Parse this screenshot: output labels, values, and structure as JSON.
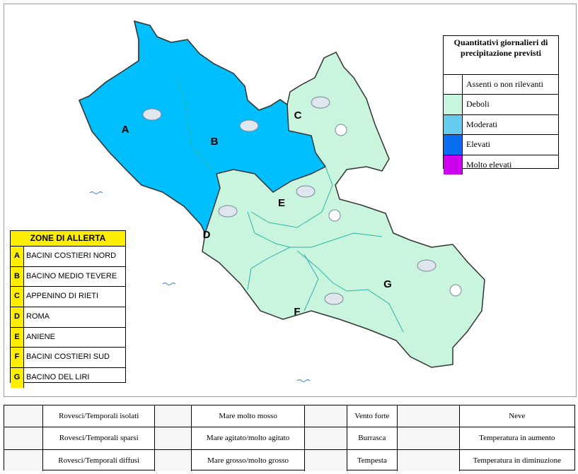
{
  "map": {
    "zone_labels": [
      "A",
      "B",
      "C",
      "D",
      "E",
      "F",
      "G"
    ]
  },
  "precip_legend": {
    "title": "Quantitativi giornalieri di precipitazione previsti",
    "items": [
      {
        "label": "Assenti o non rilevanti",
        "color": "#ffffff"
      },
      {
        "label": "Deboli",
        "color": "#c9f5df"
      },
      {
        "label": "Moderati",
        "color": "#66ccee"
      },
      {
        "label": "Elevati",
        "color": "#0a6ef0"
      },
      {
        "label": "Molto elevati",
        "color": "#cc00ee"
      }
    ]
  },
  "zones": {
    "title": "ZONE DI ALLERTA",
    "rows": [
      [
        "A",
        "BACINI COSTIERI NORD"
      ],
      [
        "B",
        "BACINO MEDIO TEVERE"
      ],
      [
        "C",
        "APPENINO DI RIETI"
      ],
      [
        "D",
        "ROMA"
      ],
      [
        "E",
        "ANIENE"
      ],
      [
        "F",
        "BACINI COSTIERI SUD"
      ],
      [
        "G",
        "BACINO DEL LIRI"
      ]
    ]
  },
  "symbols": {
    "rows": [
      [
        "Rovesci/Temporali isolati",
        "Mare molto mosso",
        "Vento forte",
        "Neve"
      ],
      [
        "Rovesci/Temporali sparsi",
        "Mare agitato/molto agitato",
        "Burrasca",
        "Temperatura in aumento"
      ],
      [
        "Rovesci/Temporali diffusi",
        "Mare grosso/molto grosso",
        "Tempesta",
        "Temperatura in diminuzione"
      ]
    ]
  }
}
